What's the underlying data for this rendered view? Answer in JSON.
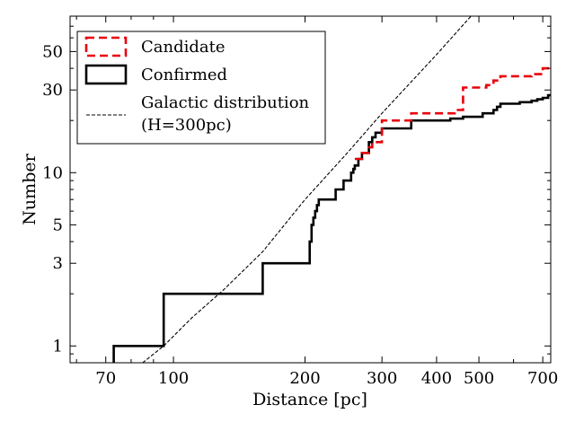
{
  "chart_data": {
    "type": "line",
    "title": "",
    "xlabel": "Distance [pc]",
    "ylabel": "Number",
    "xscale": "log",
    "yscale": "log",
    "xlim": [
      58,
      730
    ],
    "ylim": [
      0.8,
      80
    ],
    "xticks": [
      70,
      100,
      200,
      300,
      400,
      500,
      700
    ],
    "yticks": [
      1,
      3,
      5,
      10,
      30,
      50
    ],
    "legend_position": "top-left",
    "series": [
      {
        "name": "Candidate",
        "style": "step-dashed",
        "color": "#e8000b",
        "x": [
          260,
          270,
          280,
          285,
          300,
          350,
          440,
          460,
          520,
          540,
          560,
          660,
          700,
          730
        ],
        "y": [
          12,
          13,
          14,
          15,
          20,
          22,
          23,
          31,
          32,
          34,
          36,
          37,
          40,
          41
        ]
      },
      {
        "name": "Confirmed",
        "style": "step-solid",
        "color": "#000000",
        "x": [
          73,
          95,
          160,
          205,
          207,
          209,
          211,
          213,
          215,
          235,
          245,
          255,
          258,
          260,
          265,
          270,
          280,
          285,
          290,
          300,
          350,
          430,
          460,
          510,
          540,
          550,
          560,
          620,
          660,
          680,
          700,
          720,
          730
        ],
        "y": [
          1,
          2,
          3,
          4,
          5,
          5.5,
          6,
          6.5,
          7,
          8,
          9,
          10,
          10.5,
          11,
          12,
          13,
          15,
          16,
          17,
          18,
          20,
          20.5,
          21,
          22,
          23,
          24,
          25,
          25.5,
          26,
          26.5,
          27,
          28,
          28
        ],
        "line_start_x": 73,
        "line_start_y": 0.8
      },
      {
        "name": "Galactic distribution\n(H=300pc)",
        "style": "dashed-thin",
        "color": "#000000",
        "x": [
          85,
          95,
          110,
          130,
          160,
          200,
          250,
          300,
          400,
          500
        ],
        "y": [
          0.8,
          1.0,
          1.45,
          2.1,
          3.5,
          7,
          13,
          22,
          48,
          90
        ]
      }
    ],
    "legend": {
      "entries": [
        "Candidate",
        "Confirmed",
        "Galactic distribution",
        "(H=300pc)"
      ]
    }
  }
}
